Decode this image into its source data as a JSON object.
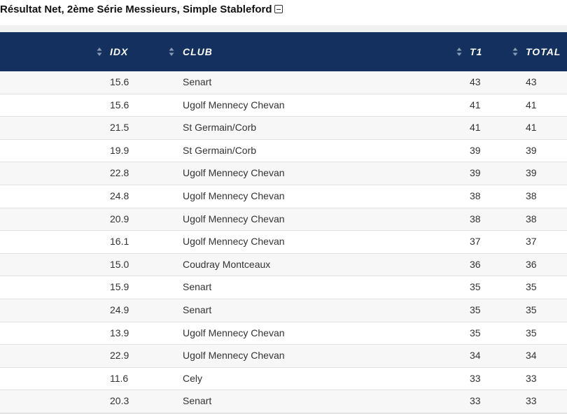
{
  "header": {
    "title": "Résultat Net, 2ème Série Messieurs, Simple Stableford"
  },
  "table": {
    "columns": [
      "IDX",
      "CLUB",
      "T1",
      "TOTAL"
    ],
    "rows": [
      [
        "15.6",
        "Senart",
        "43",
        "43"
      ],
      [
        "15.6",
        "Ugolf Mennecy Chevan",
        "41",
        "41"
      ],
      [
        "21.5",
        "St Germain/Corb",
        "41",
        "41"
      ],
      [
        "19.9",
        "St Germain/Corb",
        "39",
        "39"
      ],
      [
        "22.8",
        "Ugolf Mennecy Chevan",
        "39",
        "39"
      ],
      [
        "24.8",
        "Ugolf Mennecy Chevan",
        "38",
        "38"
      ],
      [
        "20.9",
        "Ugolf Mennecy Chevan",
        "38",
        "38"
      ],
      [
        "16.1",
        "Ugolf Mennecy Chevan",
        "37",
        "37"
      ],
      [
        "15.0",
        "Coudray Montceaux",
        "36",
        "36"
      ],
      [
        "15.9",
        "Senart",
        "35",
        "35"
      ],
      [
        "24.9",
        "Senart",
        "35",
        "35"
      ],
      [
        "13.9",
        "Ugolf Mennecy Chevan",
        "35",
        "35"
      ],
      [
        "22.9",
        "Ugolf Mennecy Chevan",
        "34",
        "34"
      ],
      [
        "11.6",
        "Cely",
        "33",
        "33"
      ],
      [
        "20.3",
        "Senart",
        "33",
        "33"
      ]
    ]
  }
}
